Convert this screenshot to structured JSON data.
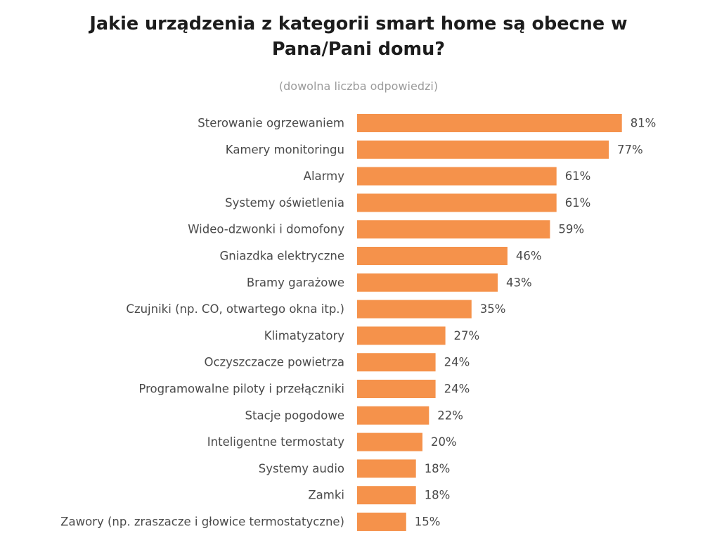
{
  "chart_data": {
    "type": "bar",
    "orientation": "horizontal",
    "title": "Jakie urządzenia z kategorii smart home są obecne w Pana/Pani domu?",
    "subtitle": "(dowolna liczba odpowiedzi)",
    "categories": [
      "Sterowanie ogrzewaniem",
      "Kamery monitoringu",
      "Alarmy",
      "Systemy oświetlenia",
      "Wideo-dzwonki i domofony",
      "Gniazdka elektryczne",
      "Bramy garażowe",
      "Czujniki (np. CO, otwartego okna itp.)",
      "Klimatyzatory",
      "Oczyszczacze powietrza",
      "Programowalne piloty i przełączniki",
      "Stacje pogodowe",
      "Inteligentne termostaty",
      "Systemy audio",
      "Zamki",
      "Zawory (np. zraszacze i głowice termostatyczne)"
    ],
    "values": [
      81,
      77,
      61,
      61,
      59,
      46,
      43,
      35,
      27,
      24,
      24,
      22,
      20,
      18,
      18,
      15
    ],
    "value_labels": [
      "81%",
      "77%",
      "61%",
      "61%",
      "59%",
      "46%",
      "43%",
      "35%",
      "27%",
      "24%",
      "24%",
      "22%",
      "20%",
      "18%",
      "18%",
      "15%"
    ],
    "unit": "%",
    "xlim": [
      0,
      100
    ],
    "grid": false,
    "legend": "none",
    "bar_color": "#F5924B"
  }
}
